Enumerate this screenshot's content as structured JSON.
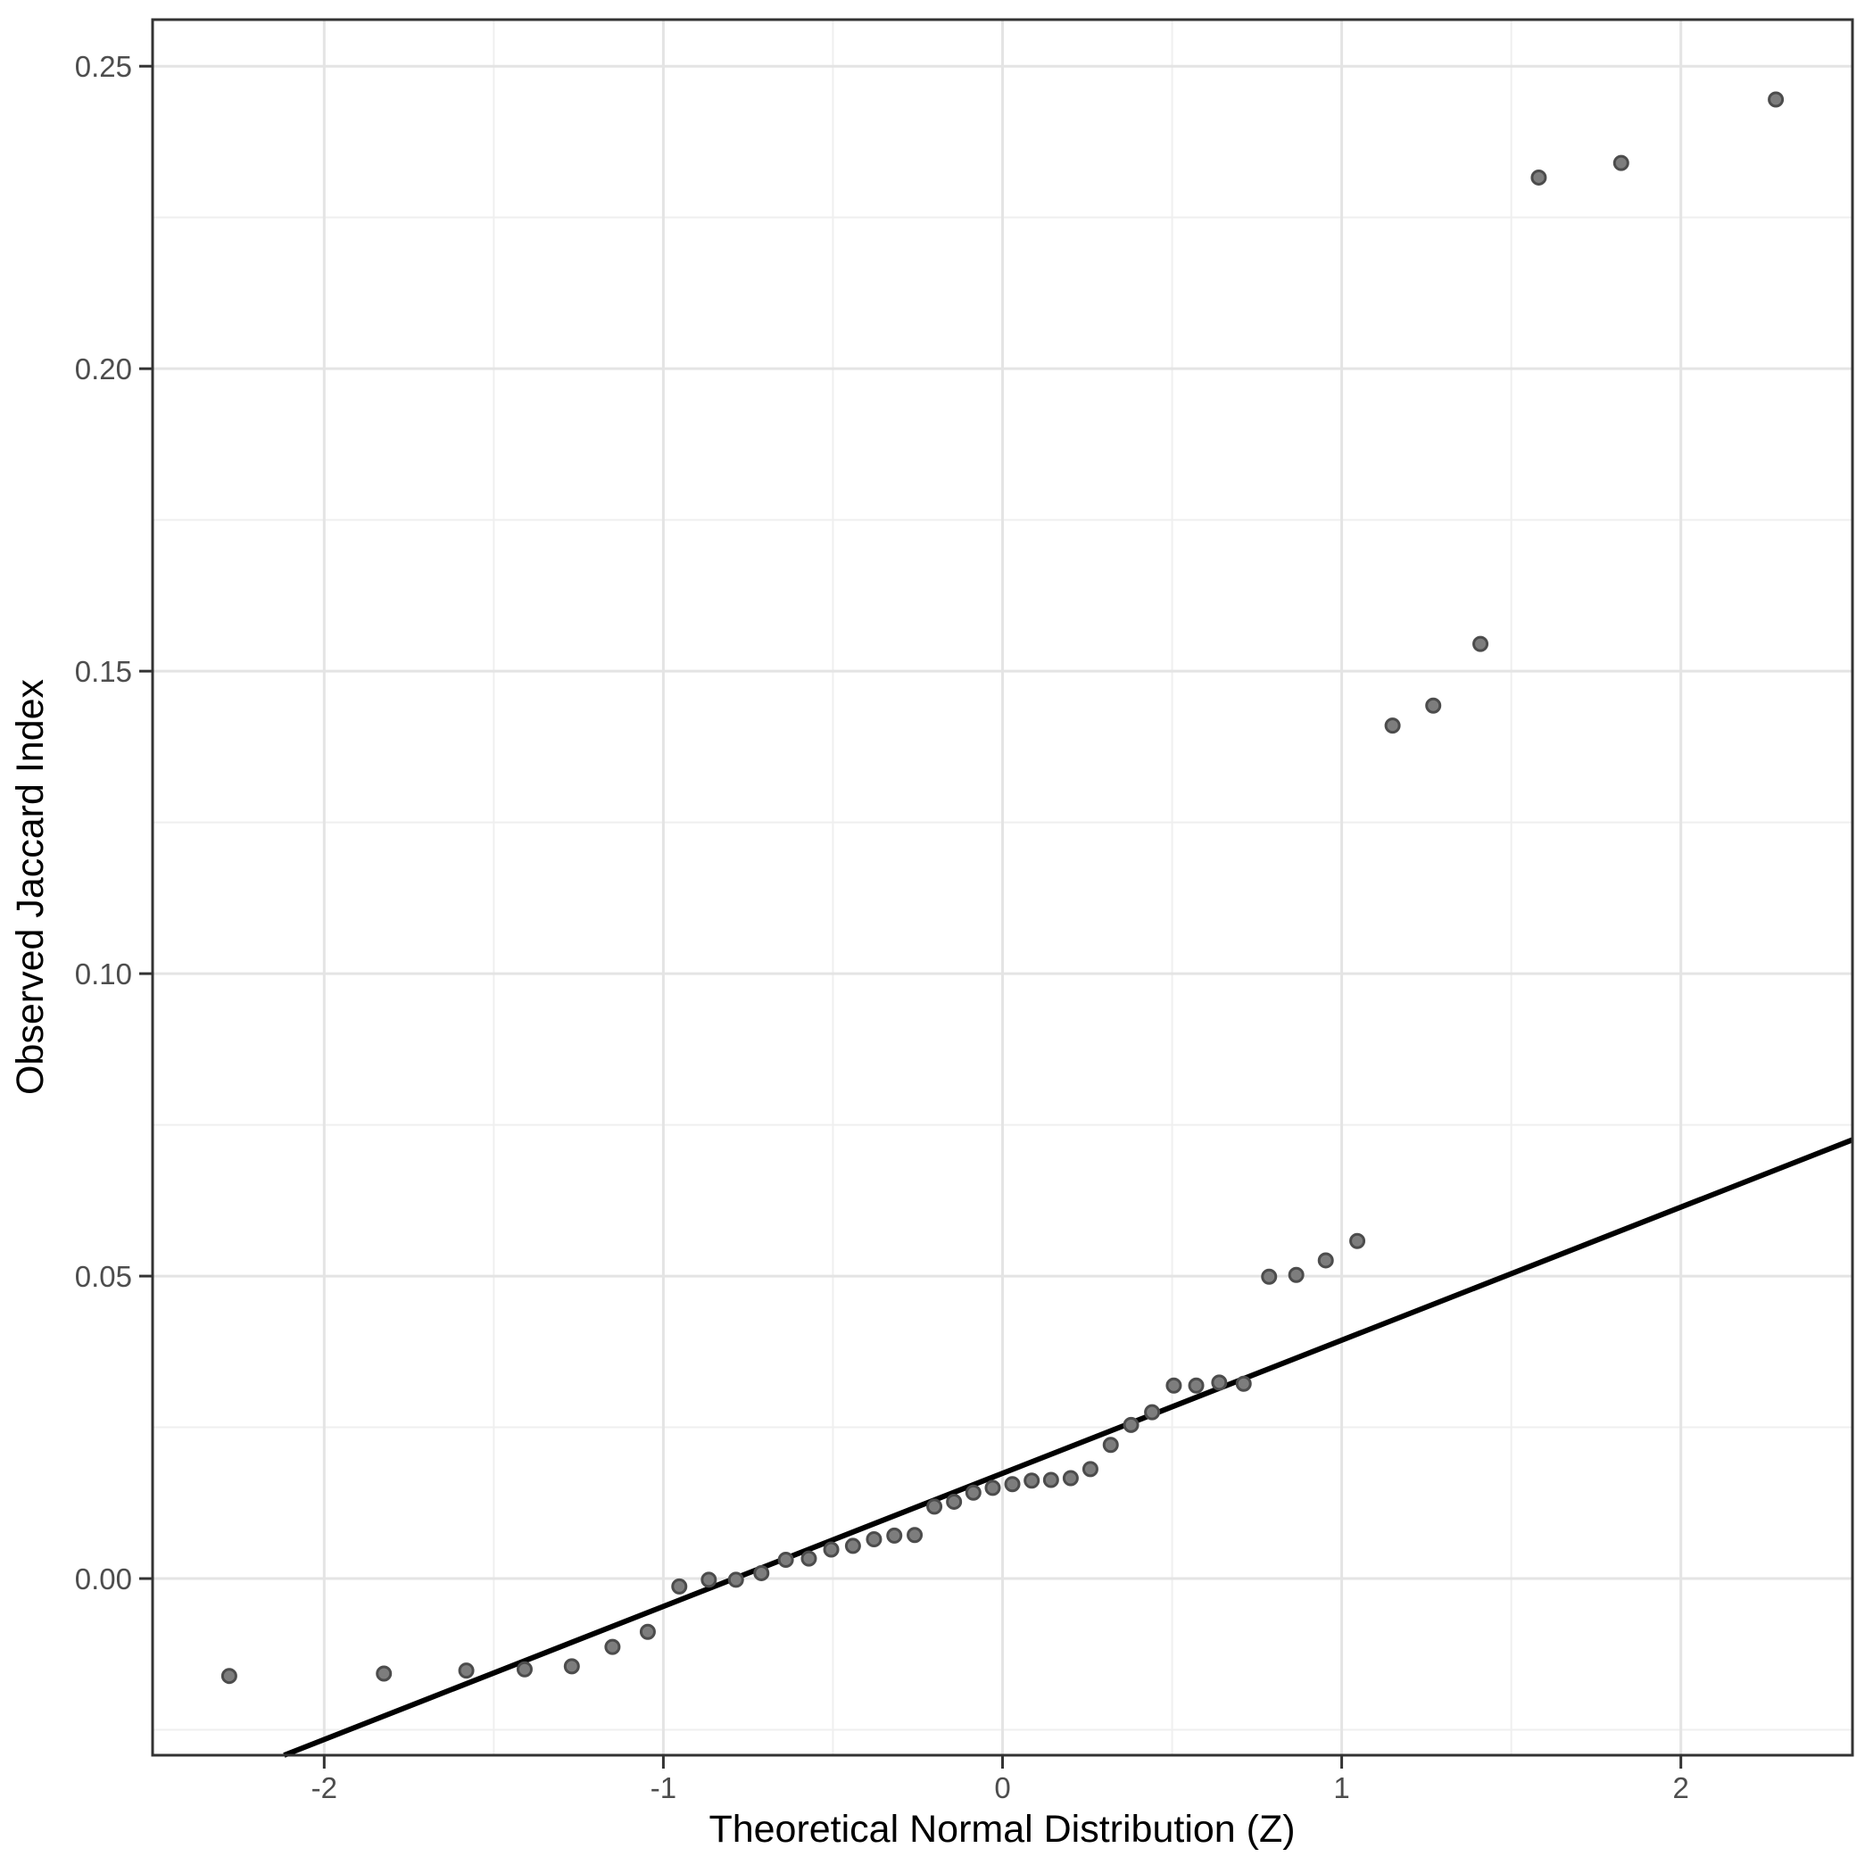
{
  "figure": {
    "background": "#ffffff"
  },
  "chart_data": {
    "type": "scatter",
    "title": "",
    "xlabel": "Theoretical Normal Distribution (Z)",
    "ylabel": "Observed Jaccard Index",
    "legend": "none",
    "grid": true,
    "x_axis": {
      "range": [
        -2.506,
        2.506
      ],
      "ticks": [
        {
          "value": -2,
          "label": "-2"
        },
        {
          "value": -1,
          "label": "-1"
        },
        {
          "value": 0,
          "label": "0"
        },
        {
          "value": 1,
          "label": "1"
        },
        {
          "value": 2,
          "label": "2"
        }
      ],
      "minor_gridlines": [
        -1.5,
        -0.5,
        0.5,
        1.5
      ]
    },
    "y_axis": {
      "range": [
        -0.0292,
        0.2577
      ],
      "ticks": [
        {
          "value": 0.0,
          "label": "0.00"
        },
        {
          "value": 0.05,
          "label": "0.05"
        },
        {
          "value": 0.1,
          "label": "0.10"
        },
        {
          "value": 0.15,
          "label": "0.15"
        },
        {
          "value": 0.2,
          "label": "0.20"
        },
        {
          "value": 0.25,
          "label": "0.25"
        }
      ],
      "minor_gridlines": [
        -0.025,
        0.025,
        0.075,
        0.125,
        0.175,
        0.225
      ]
    },
    "points": [
      {
        "z": -2.28,
        "jaccard": -0.0161
      },
      {
        "z": -1.824,
        "jaccard": -0.0157
      },
      {
        "z": -1.581,
        "jaccard": -0.0152
      },
      {
        "z": -1.409,
        "jaccard": -0.015
      },
      {
        "z": -1.27,
        "jaccard": -0.0145
      },
      {
        "z": -1.15,
        "jaccard": -0.0113
      },
      {
        "z": -1.046,
        "jaccard": -0.0088
      },
      {
        "z": -0.953,
        "jaccard": -0.0013
      },
      {
        "z": -0.866,
        "jaccard": -0.0002
      },
      {
        "z": -0.786,
        "jaccard": -0.0002
      },
      {
        "z": -0.711,
        "jaccard": 0.0009
      },
      {
        "z": -0.639,
        "jaccard": 0.0031
      },
      {
        "z": -0.571,
        "jaccard": 0.0033
      },
      {
        "z": -0.505,
        "jaccard": 0.0048
      },
      {
        "z": -0.441,
        "jaccard": 0.0054
      },
      {
        "z": -0.379,
        "jaccard": 0.0065
      },
      {
        "z": -0.319,
        "jaccard": 0.0071
      },
      {
        "z": -0.259,
        "jaccard": 0.0072
      },
      {
        "z": -0.201,
        "jaccard": 0.0119
      },
      {
        "z": -0.143,
        "jaccard": 0.0127
      },
      {
        "z": -0.086,
        "jaccard": 0.0142
      },
      {
        "z": -0.029,
        "jaccard": 0.015
      },
      {
        "z": 0.029,
        "jaccard": 0.0156
      },
      {
        "z": 0.086,
        "jaccard": 0.0162
      },
      {
        "z": 0.143,
        "jaccard": 0.0163
      },
      {
        "z": 0.201,
        "jaccard": 0.0166
      },
      {
        "z": 0.259,
        "jaccard": 0.0181
      },
      {
        "z": 0.319,
        "jaccard": 0.0221
      },
      {
        "z": 0.379,
        "jaccard": 0.0254
      },
      {
        "z": 0.441,
        "jaccard": 0.0275
      },
      {
        "z": 0.505,
        "jaccard": 0.0319
      },
      {
        "z": 0.571,
        "jaccard": 0.0319
      },
      {
        "z": 0.639,
        "jaccard": 0.0324
      },
      {
        "z": 0.711,
        "jaccard": 0.0322
      },
      {
        "z": 0.786,
        "jaccard": 0.0499
      },
      {
        "z": 0.866,
        "jaccard": 0.0502
      },
      {
        "z": 0.953,
        "jaccard": 0.0526
      },
      {
        "z": 1.046,
        "jaccard": 0.0558
      },
      {
        "z": 1.15,
        "jaccard": 0.141
      },
      {
        "z": 1.27,
        "jaccard": 0.1443
      },
      {
        "z": 1.409,
        "jaccard": 0.1545
      },
      {
        "z": 1.581,
        "jaccard": 0.2316
      },
      {
        "z": 1.824,
        "jaccard": 0.234
      },
      {
        "z": 2.28,
        "jaccard": 0.2445
      }
    ],
    "qq_line": {
      "slope": 0.022,
      "intercept": 0.0174
    },
    "colors": {
      "point_fill": "#7d7d7d",
      "point_stroke": "#4c4c4c",
      "reference_line": "#000000",
      "grid_major": "#e4e4e4",
      "grid_minor": "#efefef",
      "panel_border": "#333333",
      "tick_mark": "#333333",
      "tick_label": "#4d4d4d",
      "axis_title": "#000000"
    }
  }
}
